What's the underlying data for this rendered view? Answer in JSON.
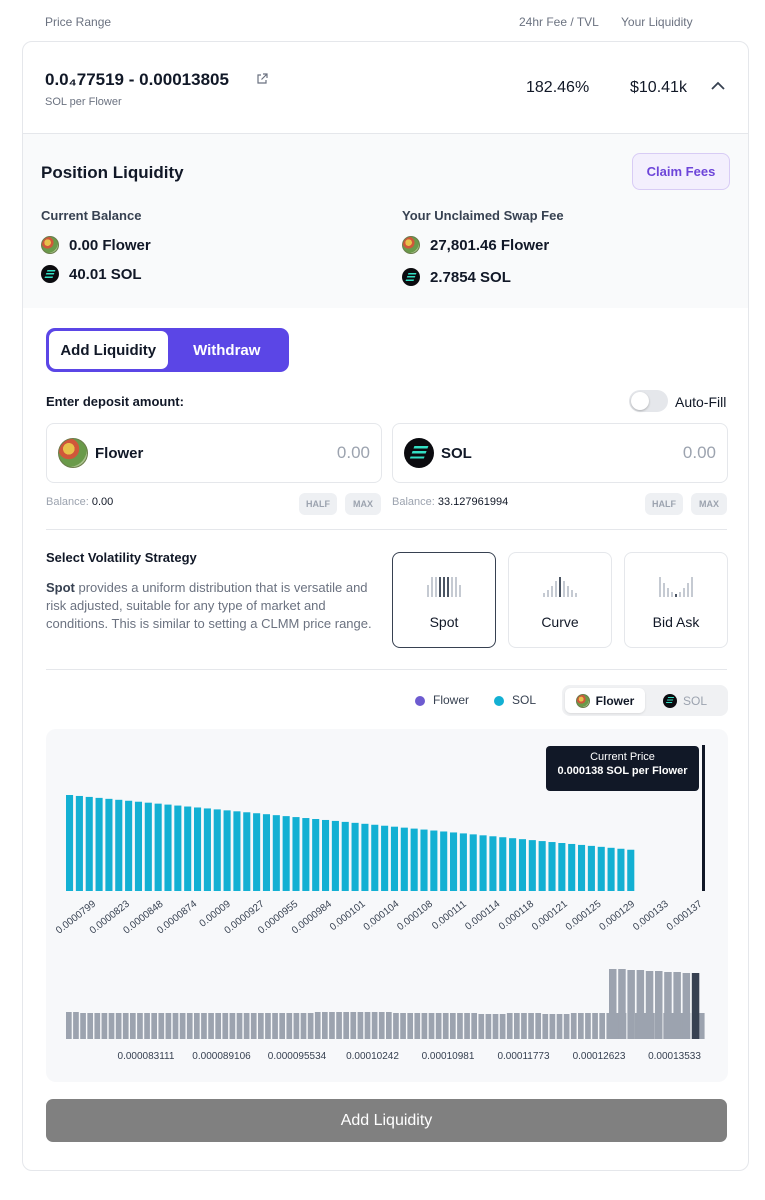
{
  "header": {
    "price_range_label": "Price Range",
    "fee_tvl_label": "24hr Fee / TVL",
    "your_liquidity_label": "Your Liquidity"
  },
  "position": {
    "range_text": "0.0₄77519 - 0.00013805",
    "unit": "SOL per Flower",
    "fee_tvl": "182.46%",
    "liquidity": "$10.41k"
  },
  "position_liquidity": {
    "title": "Position Liquidity",
    "claim_label": "Claim Fees",
    "current_balance_label": "Current Balance",
    "unclaimed_label": "Your Unclaimed Swap Fee",
    "balances": [
      "0.00 Flower",
      "40.01 SOL"
    ],
    "unclaimed": [
      "27,801.46 Flower",
      "2.7854 SOL"
    ]
  },
  "tabs": {
    "add": "Add Liquidity",
    "withdraw": "Withdraw"
  },
  "deposit": {
    "label": "Enter deposit amount:",
    "autofill_label": "Auto-Fill",
    "flower": {
      "name": "Flower",
      "amount": "0.00",
      "balance_label": "Balance:",
      "balance": "0.00"
    },
    "sol": {
      "name": "SOL",
      "amount": "0.00",
      "balance_label": "Balance:",
      "balance": "33.127961994"
    },
    "half": "HALF",
    "max": "MAX"
  },
  "strategy": {
    "title": "Select Volatility Strategy",
    "desc_bold": "Spot",
    "desc_rest": " provides a uniform distribution that is versatile and risk adjusted, suitable for any type of market and conditions. This is similar to setting a CLMM price range.",
    "options": [
      "Spot",
      "Curve",
      "Bid Ask"
    ],
    "selected": "Spot"
  },
  "legend": {
    "flower": "Flower",
    "sol": "SOL",
    "toggle_flower": "Flower",
    "toggle_sol": "SOL"
  },
  "colors": {
    "accent": "#5b46e6",
    "sol_bar": "#13b0d3",
    "volume_bar": "#9ca3af",
    "current_bar": "#374151"
  },
  "tooltip": {
    "title": "Current Price",
    "value": "0.000138 SOL per Flower"
  },
  "cta": {
    "label": "Add Liquidity"
  },
  "chart_data": [
    {
      "type": "bar",
      "title": "Liquidity distribution",
      "series": [
        {
          "name": "SOL",
          "values": [
            1.0,
            0.99,
            0.98,
            0.97,
            0.96,
            0.95,
            0.94,
            0.93,
            0.92,
            0.91,
            0.9,
            0.89,
            0.88,
            0.87,
            0.86,
            0.85,
            0.84,
            0.83,
            0.82,
            0.81,
            0.8,
            0.79,
            0.78,
            0.77,
            0.76,
            0.75,
            0.74,
            0.73,
            0.72,
            0.71,
            0.7,
            0.69,
            0.68,
            0.67,
            0.66,
            0.65,
            0.64,
            0.63,
            0.62,
            0.61,
            0.6,
            0.59,
            0.58,
            0.57,
            0.56,
            0.55,
            0.54,
            0.53,
            0.52,
            0.51,
            0.5,
            0.49,
            0.48,
            0.47,
            0.46,
            0.45,
            0.44,
            0.43,
            0,
            0,
            0,
            0,
            0,
            0,
            0
          ]
        }
      ],
      "tick_labels": [
        "0.0000799",
        "0.0000823",
        "0.0000848",
        "0.0000874",
        "0.00009",
        "0.0000927",
        "0.0000955",
        "0.0000984",
        "0.000101",
        "0.000104",
        "0.000108",
        "0.000111",
        "0.000114",
        "0.000118",
        "0.000121",
        "0.000125",
        "0.000129",
        "0.000133",
        "0.000137"
      ],
      "current_price": 0.000138
    },
    {
      "type": "bar",
      "title": "Price volume",
      "values": [
        0.27,
        0.27,
        0.26,
        0.26,
        0.26,
        0.26,
        0.26,
        0.26,
        0.26,
        0.26,
        0.26,
        0.26,
        0.26,
        0.26,
        0.26,
        0.26,
        0.26,
        0.26,
        0.26,
        0.26,
        0.26,
        0.26,
        0.26,
        0.26,
        0.26,
        0.26,
        0.26,
        0.26,
        0.26,
        0.26,
        0.26,
        0.26,
        0.26,
        0.26,
        0.26,
        0.27,
        0.27,
        0.27,
        0.27,
        0.27,
        0.27,
        0.27,
        0.27,
        0.27,
        0.27,
        0.27,
        0.26,
        0.26,
        0.26,
        0.26,
        0.26,
        0.26,
        0.26,
        0.26,
        0.26,
        0.26,
        0.26,
        0.26,
        0.25,
        0.25,
        0.25,
        0.25,
        0.26,
        0.26,
        0.26,
        0.26,
        0.26,
        0.25,
        0.25,
        0.25,
        0.25,
        0.26,
        0.26,
        0.26,
        0.26,
        0.26,
        0.26,
        0.26,
        0.26,
        0.26,
        0.26,
        0.26,
        0.26,
        0.26,
        0.26,
        0.26,
        0.26,
        0.26,
        0.26,
        0.26
      ],
      "tick_labels": [
        "0.000083111",
        "0.000089106",
        "0.000095534",
        "0.00010242",
        "0.00010981",
        "0.00011773",
        "0.00012623",
        "0.00013533"
      ]
    }
  ]
}
